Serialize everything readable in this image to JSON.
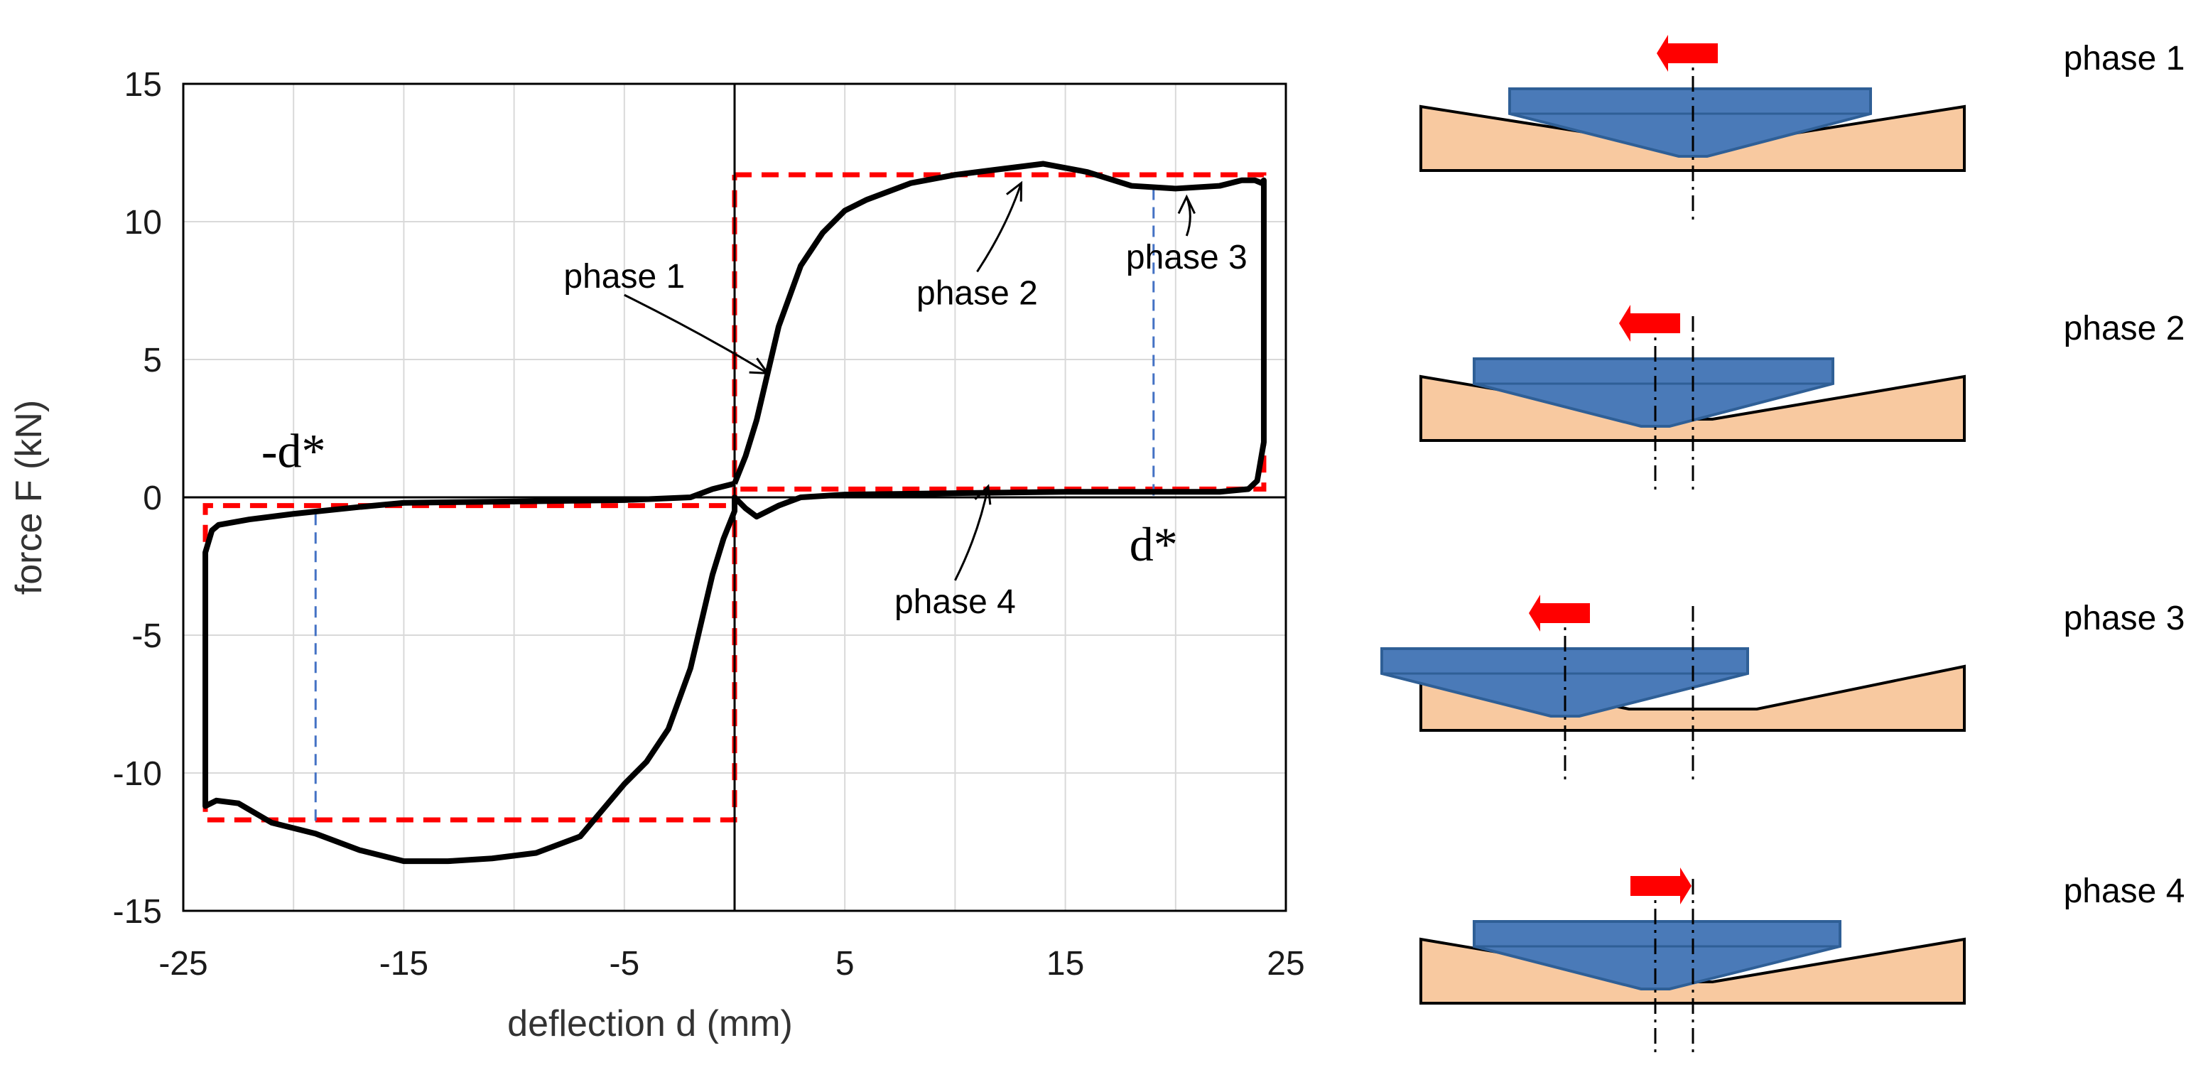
{
  "chart_data": {
    "type": "line",
    "xlabel": "deflection d (mm)",
    "ylabel": "force F (kN)",
    "xlim": [
      -25,
      25
    ],
    "ylim": [
      -15,
      15
    ],
    "xticks": [
      -25,
      -15,
      -5,
      5,
      15,
      25
    ],
    "yticks": [
      15,
      10,
      5,
      0,
      -5,
      -10,
      -15
    ],
    "grid": true,
    "series": [
      {
        "color": "#000000",
        "x": [
          0,
          0.5,
          1,
          1.5,
          2,
          3,
          4,
          5,
          6,
          8,
          10,
          12,
          14,
          16,
          18,
          20,
          22,
          23,
          23.6,
          23.9,
          24,
          24,
          23.7,
          23.3,
          22,
          20,
          15,
          10,
          5,
          3,
          2,
          1.5,
          1,
          0.5,
          0,
          0,
          -0.5,
          -1,
          -1.5,
          -2,
          -3,
          -4,
          -5,
          -7,
          -9,
          -11,
          -13,
          -15,
          -17,
          -19,
          -21,
          -22.5,
          -23.5,
          -24,
          -24,
          -23.7,
          -23.4,
          -22,
          -20,
          -17,
          -15,
          -10,
          -5,
          -2,
          -1,
          0
        ],
        "y": [
          0.5,
          1.5,
          2.8,
          4.5,
          6.2,
          8.4,
          9.6,
          10.4,
          10.8,
          11.4,
          11.7,
          11.9,
          12.1,
          11.8,
          11.3,
          11.2,
          11.3,
          11.5,
          11.5,
          11.4,
          11.5,
          2,
          0.6,
          0.3,
          0.2,
          0.2,
          0.2,
          0.15,
          0.1,
          0,
          -0.3,
          -0.5,
          -0.7,
          -0.4,
          0,
          -0.5,
          -1.5,
          -2.8,
          -4.5,
          -6.2,
          -8.4,
          -9.6,
          -10.4,
          -12.3,
          -12.9,
          -13.1,
          -13.2,
          -13.2,
          -12.8,
          -12.2,
          -11.8,
          -11.1,
          -11.0,
          -11.2,
          -2,
          -1.2,
          -1.0,
          -0.8,
          -0.6,
          -0.35,
          -0.2,
          -0.15,
          -0.1,
          0,
          0.3,
          0.5
        ]
      }
    ],
    "bilinear_envelope": {
      "color": "#ff0000",
      "x": [
        0,
        24,
        24,
        0,
        0,
        -24,
        -24,
        0,
        0
      ],
      "y": [
        11.7,
        11.7,
        0.3,
        0.3,
        -11.7,
        -11.7,
        -0.3,
        -0.3,
        11.7
      ]
    },
    "d_star": {
      "value": 19,
      "color": "#4472c4"
    },
    "annotations": [
      {
        "text": "phase 1",
        "x": -5,
        "y": 7.6,
        "arrow_to": [
          1.5,
          4.5
        ]
      },
      {
        "text": "phase 2",
        "x": 11,
        "y": 7.0,
        "arrow_to": [
          13,
          11.4
        ]
      },
      {
        "text": "phase 3",
        "x": 20.5,
        "y": 8.3,
        "arrow_to": [
          20.5,
          10.9
        ]
      },
      {
        "text": "phase 4",
        "x": 10,
        "y": -4.2,
        "arrow_to": [
          11.5,
          0.4
        ]
      },
      {
        "text": "-d*",
        "x": -20,
        "y": 1.1
      },
      {
        "text": "d*",
        "x": 19,
        "y": -2.3
      }
    ]
  },
  "phases": [
    {
      "label": "phase 1",
      "arrow": "left"
    },
    {
      "label": "phase 2",
      "arrow": "left"
    },
    {
      "label": "phase 3",
      "arrow": "left"
    },
    {
      "label": "phase 4",
      "arrow": "right"
    }
  ],
  "colors": {
    "base": "#f8c9a0",
    "slider": "#4a7ab8",
    "slider_edge": "#2f5f96",
    "push_arrow": "#ff0000",
    "grid": "#d9d9d9"
  }
}
